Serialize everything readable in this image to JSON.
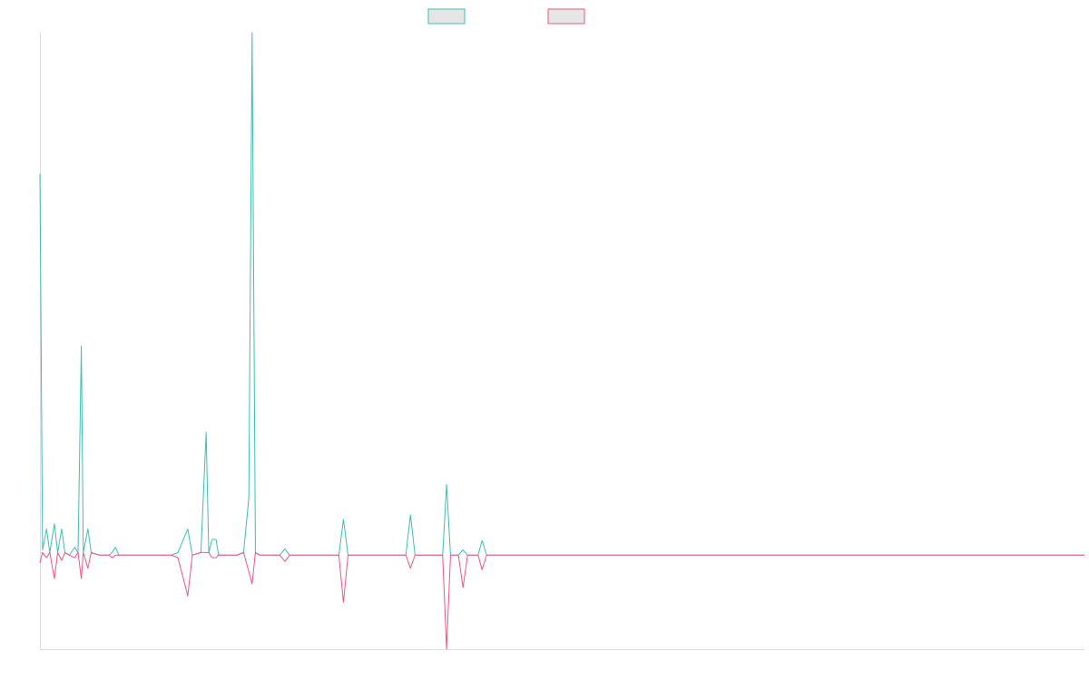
{
  "chart_data": {
    "type": "line",
    "title": "",
    "xlabel": "",
    "ylabel": "",
    "ylim": [
      -1.8,
      10
    ],
    "grid": false,
    "legend_position": "top-center",
    "baseline": 0,
    "series": [
      {
        "name": "",
        "color": "#3dbfb2",
        "points": [
          [
            0,
            7.3
          ],
          [
            0.4,
            0.1
          ],
          [
            1,
            0.5
          ],
          [
            1.5,
            0.05
          ],
          [
            2.2,
            0.6
          ],
          [
            2.7,
            0.05
          ],
          [
            3.3,
            0.5
          ],
          [
            3.8,
            0.05
          ],
          [
            4.5,
            0.0
          ],
          [
            5.3,
            0.15
          ],
          [
            5.8,
            0.05
          ],
          [
            6.3,
            4.0
          ],
          [
            6.6,
            0.05
          ],
          [
            7.3,
            0.5
          ],
          [
            7.8,
            0.05
          ],
          [
            9,
            0.0
          ],
          [
            10.5,
            0.0
          ],
          [
            11,
            0.05
          ],
          [
            11.5,
            0.15
          ],
          [
            12,
            0.0
          ],
          [
            18,
            0.0
          ],
          [
            20,
            0.0
          ],
          [
            21,
            0.05
          ],
          [
            22.5,
            0.5
          ],
          [
            23.2,
            0.0
          ],
          [
            24.5,
            0.05
          ],
          [
            25.3,
            2.35
          ],
          [
            25.7,
            0.05
          ],
          [
            26.2,
            0.3
          ],
          [
            26.8,
            0.3
          ],
          [
            27.2,
            0.0
          ],
          [
            30,
            0.0
          ],
          [
            31,
            0.05
          ],
          [
            31.8,
            1.1
          ],
          [
            32.3,
            10.0
          ],
          [
            32.8,
            0.05
          ],
          [
            33.5,
            0.0
          ],
          [
            36.5,
            0.0
          ],
          [
            37.3,
            0.12
          ],
          [
            38,
            0.0
          ],
          [
            45.5,
            0.0
          ],
          [
            46.2,
            0.68
          ],
          [
            46.9,
            0.0
          ],
          [
            55.7,
            0.0
          ],
          [
            56.4,
            0.77
          ],
          [
            57.1,
            0.0
          ],
          [
            61.3,
            0.0
          ],
          [
            61.9,
            1.35
          ],
          [
            62.5,
            0.0
          ],
          [
            63.7,
            0.0
          ],
          [
            64.4,
            0.1
          ],
          [
            65.1,
            0.0
          ],
          [
            66.7,
            0.0
          ],
          [
            67.3,
            0.28
          ],
          [
            68,
            0.0
          ],
          [
            100,
            0.0
          ],
          [
            159,
            0.0
          ]
        ]
      },
      {
        "name": "",
        "color": "#f0577e",
        "points": [
          [
            0,
            -0.15
          ],
          [
            0.4,
            0.05
          ],
          [
            1,
            -0.05
          ],
          [
            1.5,
            0.05
          ],
          [
            2.2,
            -0.45
          ],
          [
            2.7,
            0.05
          ],
          [
            3.3,
            -0.1
          ],
          [
            3.8,
            0.05
          ],
          [
            4.5,
            0.0
          ],
          [
            5.3,
            -0.05
          ],
          [
            5.8,
            0.05
          ],
          [
            6.3,
            -0.45
          ],
          [
            6.6,
            0.05
          ],
          [
            7.3,
            -0.25
          ],
          [
            7.8,
            0.05
          ],
          [
            9,
            0.0
          ],
          [
            10.5,
            0.0
          ],
          [
            11,
            -0.05
          ],
          [
            11.5,
            0.0
          ],
          [
            18,
            0.0
          ],
          [
            20,
            0.0
          ],
          [
            21,
            -0.05
          ],
          [
            22.5,
            -0.78
          ],
          [
            23.2,
            0.0
          ],
          [
            24.5,
            0.05
          ],
          [
            25.3,
            0.05
          ],
          [
            25.7,
            0.05
          ],
          [
            26.2,
            -0.05
          ],
          [
            26.8,
            -0.05
          ],
          [
            27.2,
            0.0
          ],
          [
            30,
            0.0
          ],
          [
            31,
            0.05
          ],
          [
            32.3,
            -0.55
          ],
          [
            32.8,
            0.05
          ],
          [
            33.5,
            0.0
          ],
          [
            36.5,
            0.0
          ],
          [
            37.3,
            -0.12
          ],
          [
            38,
            0.0
          ],
          [
            45.5,
            0.0
          ],
          [
            46.2,
            -0.9
          ],
          [
            46.9,
            0.0
          ],
          [
            55.7,
            0.0
          ],
          [
            56.4,
            -0.25
          ],
          [
            57.1,
            0.0
          ],
          [
            61.3,
            0.0
          ],
          [
            61.9,
            -1.8
          ],
          [
            62.5,
            0.0
          ],
          [
            63.7,
            0.0
          ],
          [
            64.4,
            -0.62
          ],
          [
            65.1,
            0.0
          ],
          [
            66.7,
            0.0
          ],
          [
            67.3,
            -0.28
          ],
          [
            68,
            0.0
          ],
          [
            100,
            0.0
          ],
          [
            159,
            0.0
          ]
        ]
      }
    ]
  }
}
